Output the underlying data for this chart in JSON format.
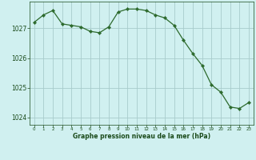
{
  "x": [
    0,
    1,
    2,
    3,
    4,
    5,
    6,
    7,
    8,
    9,
    10,
    11,
    12,
    13,
    14,
    15,
    16,
    17,
    18,
    19,
    20,
    21,
    22,
    23
  ],
  "y": [
    1027.2,
    1027.45,
    1027.6,
    1027.15,
    1027.1,
    1027.05,
    1026.9,
    1026.85,
    1027.05,
    1027.55,
    1027.65,
    1027.65,
    1027.6,
    1027.45,
    1027.35,
    1027.1,
    1026.6,
    1026.15,
    1025.75,
    1025.1,
    1024.85,
    1024.35,
    1024.3,
    1024.5
  ],
  "line_color": "#2d6a2d",
  "marker": "D",
  "marker_size": 2.2,
  "bg_color": "#d0f0f0",
  "grid_color": "#a8cccc",
  "xlabel": "Graphe pression niveau de la mer (hPa)",
  "xlabel_color": "#1a4a1a",
  "tick_color": "#1a4a1a",
  "ylim": [
    1023.75,
    1027.9
  ],
  "xlim": [
    -0.5,
    23.5
  ],
  "yticks": [
    1024,
    1025,
    1026,
    1027
  ],
  "xticks": [
    0,
    1,
    2,
    3,
    4,
    5,
    6,
    7,
    8,
    9,
    10,
    11,
    12,
    13,
    14,
    15,
    16,
    17,
    18,
    19,
    20,
    21,
    22,
    23
  ]
}
